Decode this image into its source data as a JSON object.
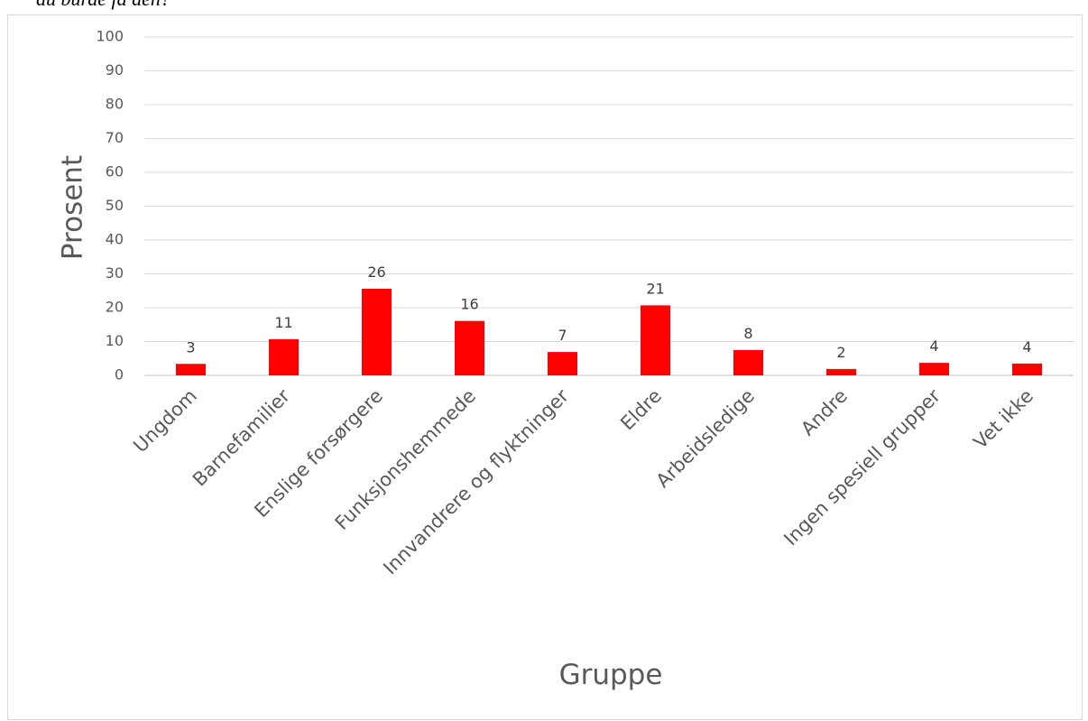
{
  "caption_fragment": "du burde få den?",
  "chart_data": {
    "type": "bar",
    "title": "",
    "xlabel": "Gruppe",
    "ylabel": "Prosent",
    "ylim": [
      0,
      100
    ],
    "yticks": [
      0,
      10,
      20,
      30,
      40,
      50,
      60,
      70,
      80,
      90,
      100
    ],
    "grid": true,
    "legend": "none",
    "bar_color": "#ff0000",
    "categories": [
      "Ungdom",
      "Barnefamilier",
      "Enslige forsørgere",
      "Funksjonshemmede",
      "Innvandrere og flyktninger",
      "Eldre",
      "Arbeidsledige",
      "Andre",
      "Ingen spesiell grupper",
      "Vet ikke"
    ],
    "values": [
      3.4,
      10.7,
      25.6,
      16.1,
      6.9,
      20.7,
      7.5,
      1.9,
      3.7,
      3.5
    ],
    "data_labels": [
      "3",
      "11",
      "26",
      "16",
      "7",
      "21",
      "8",
      "2",
      "4",
      "4"
    ]
  }
}
